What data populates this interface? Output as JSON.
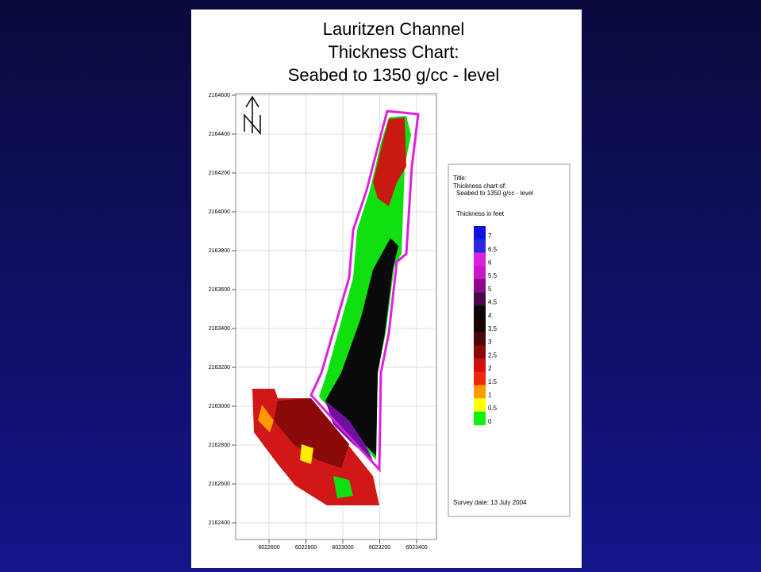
{
  "title": [
    "Lauritzen Channel",
    "Thickness Chart:",
    "Seabed to 1350 g/cc - level"
  ],
  "axes": {
    "y_ticks": [
      "2164600",
      "2164400",
      "2164200",
      "2164000",
      "2163800",
      "2163600",
      "2163400",
      "2163200",
      "2163000",
      "2162800",
      "2162600",
      "2162400"
    ],
    "x_ticks": [
      "6022600",
      "6022800",
      "6023000",
      "6023200",
      "6023400"
    ]
  },
  "legend": {
    "heading": "Title:",
    "lines": [
      "Thickness chart of:",
      "Seabed to 1350 g/cc - level"
    ],
    "scale_title": "Thickness in feet",
    "levels": [
      {
        "label": "7",
        "color": "#1010e0"
      },
      {
        "label": "6.5",
        "color": "#2a2ad8"
      },
      {
        "label": "6",
        "color": "#e020e0"
      },
      {
        "label": "5.5",
        "color": "#c818c8"
      },
      {
        "label": "5",
        "color": "#8a0a8a"
      },
      {
        "label": "4.5",
        "color": "#4a0a4a"
      },
      {
        "label": "4",
        "color": "#080808"
      },
      {
        "label": "3.5",
        "color": "#1a0404"
      },
      {
        "label": "3",
        "color": "#4a0808"
      },
      {
        "label": "2.5",
        "color": "#8a0a0a"
      },
      {
        "label": "2",
        "color": "#d01010"
      },
      {
        "label": "1.5",
        "color": "#f02808"
      },
      {
        "label": "1",
        "color": "#ff9900"
      },
      {
        "label": "0.5",
        "color": "#ffff00"
      },
      {
        "label": "0",
        "color": "#10f010"
      }
    ]
  },
  "survey_date": "Survey date: 13 July 2004"
}
